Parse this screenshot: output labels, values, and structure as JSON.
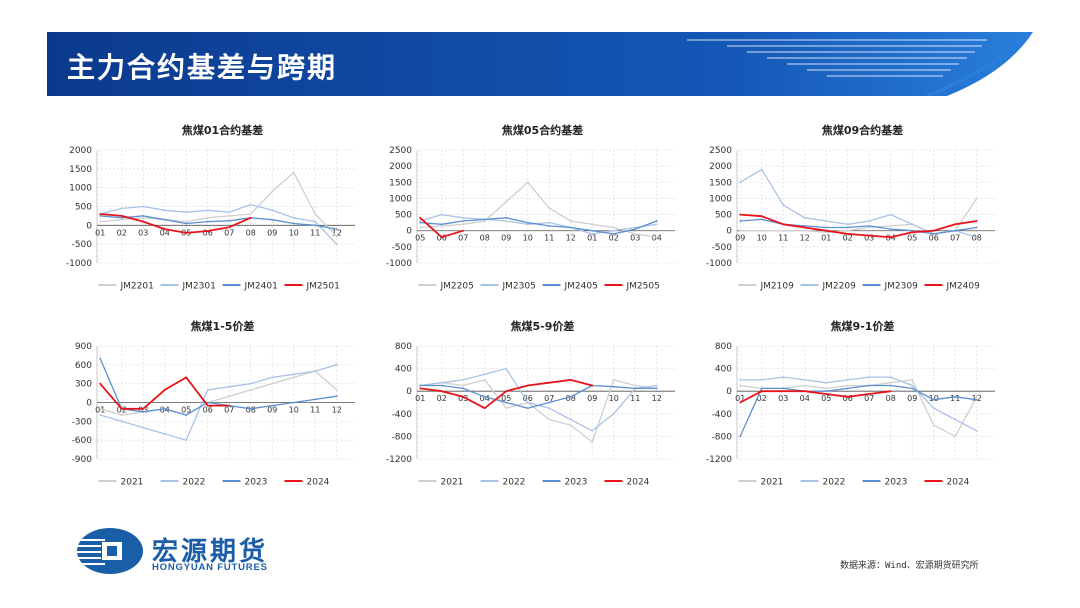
{
  "page": {
    "title": "主力合约基差与跨期",
    "logo_cn": "宏源期货",
    "logo_en": "HONGYUAN FUTURES",
    "source": "数据来源：Wind、宏源期货研究所"
  },
  "colors": {
    "banner_dark": "#0b3a8c",
    "banner_light": "#1d6fd0",
    "gray": "#cfcfcf",
    "light_blue": "#a9c3e6",
    "blue": "#5a8fd0",
    "red": "#e8141b"
  },
  "chart_data": [
    {
      "type": "line",
      "title": "焦煤01合约基差",
      "x": [
        "01",
        "02",
        "03",
        "04",
        "05",
        "06",
        "07",
        "08",
        "09",
        "10",
        "11",
        "12"
      ],
      "ylim": [
        -1000,
        2000
      ],
      "yticks": [
        2000,
        1500,
        1000,
        500,
        0,
        -500,
        -1000
      ],
      "series": [
        {
          "name": "JM2201",
          "color": "gray",
          "values": [
            100,
            150,
            200,
            150,
            100,
            200,
            250,
            300,
            900,
            1400,
            300,
            -300
          ]
        },
        {
          "name": "JM2301",
          "color": "light_blue",
          "values": [
            300,
            450,
            500,
            400,
            350,
            400,
            350,
            550,
            400,
            200,
            100,
            -500
          ]
        },
        {
          "name": "JM2401",
          "color": "blue",
          "values": [
            250,
            200,
            250,
            150,
            50,
            100,
            120,
            200,
            150,
            50,
            0,
            -100
          ]
        },
        {
          "name": "JM2501",
          "color": "red",
          "values": [
            300,
            250,
            100,
            -100,
            -200,
            -150,
            -50,
            200,
            null,
            null,
            null,
            null
          ]
        }
      ]
    },
    {
      "type": "line",
      "title": "焦煤05合约基差",
      "x": [
        "05",
        "06",
        "07",
        "08",
        "09",
        "10",
        "11",
        "12",
        "01",
        "02",
        "03",
        "04"
      ],
      "ylim": [
        -1000,
        2500
      ],
      "yticks": [
        2500,
        2000,
        1500,
        1000,
        500,
        0,
        -500,
        -1000
      ],
      "series": [
        {
          "name": "JM2205",
          "color": "gray",
          "values": [
            100,
            150,
            200,
            300,
            900,
            1500,
            700,
            300,
            200,
            100,
            -100,
            -200
          ]
        },
        {
          "name": "JM2305",
          "color": "light_blue",
          "values": [
            300,
            500,
            400,
            350,
            300,
            200,
            250,
            100,
            -100,
            0,
            100,
            200
          ]
        },
        {
          "name": "JM2405",
          "color": "blue",
          "values": [
            250,
            200,
            300,
            350,
            400,
            250,
            150,
            100,
            0,
            -100,
            50,
            300
          ]
        },
        {
          "name": "JM2505",
          "color": "red",
          "values": [
            400,
            -200,
            0,
            null,
            null,
            null,
            null,
            null,
            null,
            null,
            null,
            null
          ]
        }
      ]
    },
    {
      "type": "line",
      "title": "焦煤09合约基差",
      "x": [
        "09",
        "10",
        "11",
        "12",
        "01",
        "02",
        "03",
        "04",
        "05",
        "06",
        "07",
        "08"
      ],
      "ylim": [
        -1000,
        2500
      ],
      "yticks": [
        2500,
        2000,
        1500,
        1000,
        500,
        0,
        -500,
        -1000
      ],
      "series": [
        {
          "name": "JM2109",
          "color": "gray",
          "values": [
            0,
            0,
            0,
            0,
            -50,
            0,
            100,
            150,
            200,
            -100,
            0,
            1000
          ]
        },
        {
          "name": "JM2209",
          "color": "light_blue",
          "values": [
            1500,
            1900,
            800,
            400,
            300,
            200,
            300,
            500,
            200,
            -100,
            0,
            -200
          ]
        },
        {
          "name": "JM2309",
          "color": "blue",
          "values": [
            300,
            350,
            200,
            150,
            100,
            100,
            150,
            50,
            0,
            -100,
            0,
            100
          ]
        },
        {
          "name": "JM2409",
          "color": "red",
          "values": [
            500,
            450,
            200,
            100,
            0,
            -100,
            -150,
            -200,
            -50,
            0,
            200,
            300
          ]
        }
      ]
    },
    {
      "type": "line",
      "title": "焦煤1-5价差",
      "x": [
        "01",
        "02",
        "03",
        "04",
        "05",
        "06",
        "07",
        "08",
        "09",
        "10",
        "11",
        "12"
      ],
      "ylim": [
        -900,
        900
      ],
      "yticks": [
        900,
        600,
        300,
        0,
        -300,
        -600,
        -900
      ],
      "series": [
        {
          "name": "2021",
          "color": "gray",
          "values": [
            -100,
            -200,
            -150,
            -100,
            -200,
            0,
            100,
            200,
            300,
            400,
            500,
            200
          ]
        },
        {
          "name": "2022",
          "color": "light_blue",
          "values": [
            -200,
            -300,
            -400,
            -500,
            -600,
            200,
            250,
            300,
            400,
            450,
            500,
            600
          ]
        },
        {
          "name": "2023",
          "color": "blue",
          "values": [
            700,
            -100,
            -150,
            -100,
            -200,
            0,
            -50,
            -100,
            -50,
            0,
            50,
            100
          ]
        },
        {
          "name": "2024",
          "color": "red",
          "values": [
            300,
            -100,
            -100,
            200,
            400,
            -50,
            -50,
            null,
            null,
            null,
            null,
            null
          ]
        }
      ]
    },
    {
      "type": "line",
      "title": "焦煤5-9价差",
      "x": [
        "01",
        "02",
        "03",
        "04",
        "05",
        "06",
        "07",
        "08",
        "09",
        "10",
        "11",
        "12"
      ],
      "ylim": [
        -1200,
        800
      ],
      "yticks": [
        800,
        400,
        0,
        -400,
        -800,
        -1200
      ],
      "series": [
        {
          "name": "2021",
          "color": "gray",
          "values": [
            100,
            150,
            100,
            200,
            -300,
            -200,
            -500,
            -600,
            -900,
            200,
            100,
            50
          ]
        },
        {
          "name": "2022",
          "color": "light_blue",
          "values": [
            100,
            150,
            200,
            300,
            400,
            -200,
            -300,
            -500,
            -700,
            -400,
            50,
            100
          ]
        },
        {
          "name": "2023",
          "color": "blue",
          "values": [
            100,
            100,
            50,
            -100,
            -200,
            -300,
            -200,
            -100,
            100,
            80,
            50,
            50
          ]
        },
        {
          "name": "2024",
          "color": "red",
          "values": [
            50,
            0,
            -100,
            -300,
            0,
            100,
            150,
            200,
            100,
            null,
            null,
            null
          ]
        }
      ]
    },
    {
      "type": "line",
      "title": "焦煤9-1价差",
      "x": [
        "01",
        "02",
        "03",
        "04",
        "05",
        "06",
        "07",
        "08",
        "09",
        "10",
        "11",
        "12"
      ],
      "ylim": [
        -1200,
        800
      ],
      "yticks": [
        800,
        400,
        0,
        -400,
        -800,
        -1200
      ],
      "series": [
        {
          "name": "2021",
          "color": "gray",
          "values": [
            100,
            50,
            50,
            100,
            50,
            100,
            100,
            150,
            200,
            -600,
            -800,
            -100
          ]
        },
        {
          "name": "2022",
          "color": "light_blue",
          "values": [
            200,
            200,
            250,
            200,
            150,
            200,
            250,
            250,
            100,
            -300,
            -500,
            -700
          ]
        },
        {
          "name": "2023",
          "color": "blue",
          "values": [
            -800,
            50,
            50,
            0,
            0,
            50,
            100,
            100,
            50,
            -150,
            -100,
            -150
          ]
        },
        {
          "name": "2024",
          "color": "red",
          "values": [
            -200,
            0,
            0,
            0,
            -50,
            -100,
            -50,
            0,
            null,
            null,
            null,
            null
          ]
        }
      ]
    }
  ]
}
